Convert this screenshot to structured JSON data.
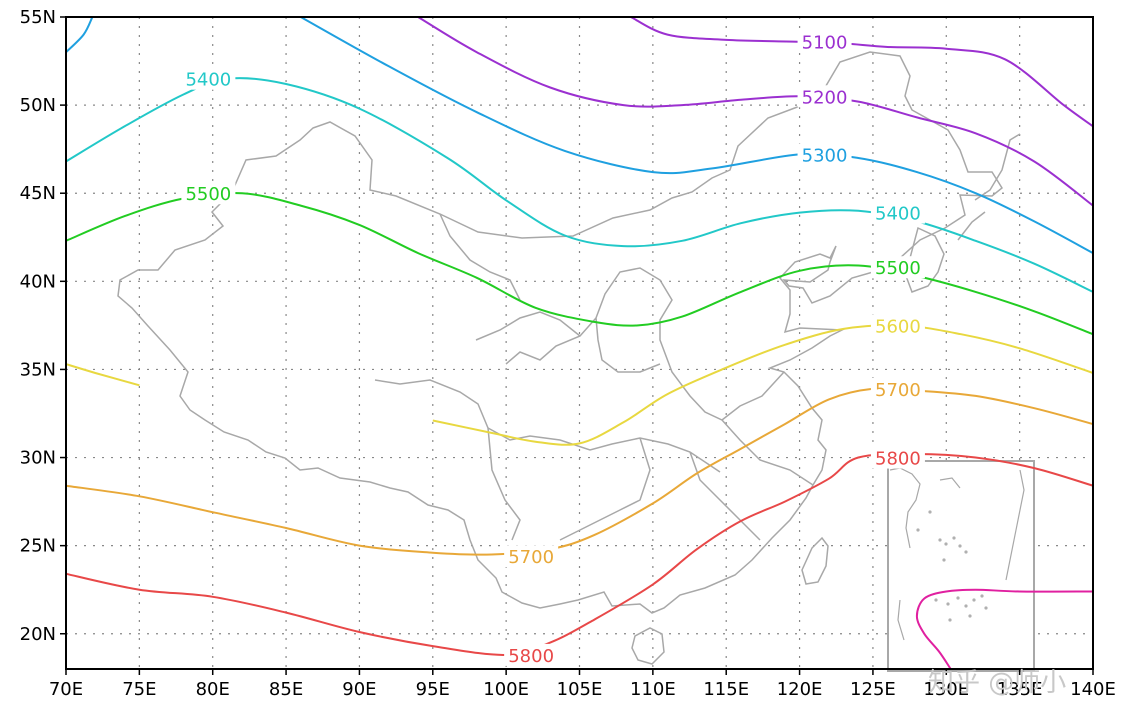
{
  "map": {
    "lon_range": [
      70,
      140
    ],
    "lat_range": [
      18,
      55
    ],
    "grid": true,
    "lon_ticks": [
      "70E",
      "75E",
      "80E",
      "85E",
      "90E",
      "95E",
      "100E",
      "105E",
      "110E",
      "115E",
      "120E",
      "125E",
      "130E",
      "135E",
      "140E"
    ],
    "lat_ticks": [
      "20N",
      "25N",
      "30N",
      "35N",
      "40N",
      "45N",
      "50N",
      "55N"
    ],
    "watermark": "知乎 @师小"
  },
  "chart_data": {
    "type": "contour",
    "contours": [
      {
        "level": "5100",
        "color": "#9b30d0",
        "path": [
          [
            108.5,
            55
          ],
          [
            111,
            54
          ],
          [
            115,
            53.7
          ],
          [
            120,
            53.6
          ],
          [
            123,
            53.5
          ],
          [
            126,
            53.3
          ],
          [
            130,
            53.2
          ],
          [
            134,
            52.6
          ],
          [
            138,
            50
          ],
          [
            140,
            48.8
          ]
        ],
        "labels": [
          [
            120,
            53.6
          ]
        ]
      },
      {
        "level": "5200",
        "color": "#9b30d0",
        "path": [
          [
            94,
            55
          ],
          [
            98,
            53
          ],
          [
            103,
            51
          ],
          [
            108,
            50
          ],
          [
            112,
            50
          ],
          [
            116,
            50.3
          ],
          [
            120,
            50.5
          ],
          [
            124,
            50.2
          ],
          [
            128,
            49.3
          ],
          [
            132,
            48.4
          ],
          [
            136,
            46.8
          ],
          [
            140,
            44.3
          ]
        ],
        "labels": [
          [
            120,
            50.5
          ]
        ]
      },
      {
        "level": "5300",
        "color": "#1fa0e0",
        "path": [
          [
            86,
            55
          ],
          [
            92,
            52.2
          ],
          [
            98,
            49.6
          ],
          [
            104,
            47.4
          ],
          [
            110,
            46.2
          ],
          [
            114,
            46.4
          ],
          [
            120,
            47.2
          ],
          [
            124,
            47.0
          ],
          [
            128,
            46.2
          ],
          [
            132,
            45.0
          ],
          [
            136,
            43.4
          ],
          [
            140,
            41.6
          ]
        ],
        "labels": [
          [
            120,
            47.2
          ]
        ]
      },
      {
        "level": "5300",
        "color": "#1fa0e0",
        "path": [
          [
            70,
            53
          ],
          [
            71.2,
            54
          ],
          [
            71.8,
            55
          ]
        ],
        "labels": []
      },
      {
        "level": "5400",
        "color": "#22c8c8",
        "path": [
          [
            70,
            46.8
          ],
          [
            74,
            48.8
          ],
          [
            78,
            50.6
          ],
          [
            81,
            51.5
          ],
          [
            85,
            51.2
          ],
          [
            90,
            49.8
          ],
          [
            96,
            47.0
          ],
          [
            100,
            44.6
          ],
          [
            104,
            42.6
          ],
          [
            108,
            42.0
          ],
          [
            112,
            42.3
          ],
          [
            116,
            43.3
          ],
          [
            120,
            43.9
          ],
          [
            124,
            44.0
          ],
          [
            128,
            43.4
          ],
          [
            132,
            42.3
          ],
          [
            136,
            41.0
          ],
          [
            140,
            39.4
          ]
        ],
        "labels": [
          [
            78,
            51.5
          ],
          [
            125,
            43.9
          ]
        ]
      },
      {
        "level": "5500",
        "color": "#22cc22",
        "path": [
          [
            70,
            42.3
          ],
          [
            74,
            43.7
          ],
          [
            78,
            44.7
          ],
          [
            82,
            45.0
          ],
          [
            86,
            44.3
          ],
          [
            90,
            43.2
          ],
          [
            94,
            41.6
          ],
          [
            98,
            40.2
          ],
          [
            102,
            38.5
          ],
          [
            106,
            37.7
          ],
          [
            109,
            37.5
          ],
          [
            112,
            38.0
          ],
          [
            116,
            39.4
          ],
          [
            120,
            40.6
          ],
          [
            124,
            40.9
          ],
          [
            128,
            40.3
          ],
          [
            132,
            39.4
          ],
          [
            136,
            38.3
          ],
          [
            140,
            37.0
          ]
        ],
        "labels": [
          [
            78,
            45
          ],
          [
            125,
            40.8
          ]
        ]
      },
      {
        "level": "5600",
        "color": "#e8d840",
        "path": [
          [
            70,
            35.3
          ],
          [
            72,
            34.8
          ],
          [
            75,
            34.1
          ]
        ],
        "labels": []
      },
      {
        "level": "5600",
        "color": "#e8d840",
        "path": [
          [
            95,
            32.1
          ],
          [
            99,
            31.4
          ],
          [
            102,
            30.9
          ],
          [
            105,
            30.8
          ],
          [
            108,
            32.0
          ],
          [
            111,
            33.6
          ],
          [
            115,
            35.1
          ],
          [
            119,
            36.4
          ],
          [
            123,
            37.3
          ],
          [
            127,
            37.5
          ],
          [
            131,
            37.0
          ],
          [
            135,
            36.2
          ],
          [
            140,
            34.8
          ]
        ],
        "labels": [
          [
            125,
            37.5
          ]
        ]
      },
      {
        "level": "5700",
        "color": "#e8a838",
        "path": [
          [
            70,
            28.4
          ],
          [
            75,
            27.8
          ],
          [
            80,
            26.9
          ],
          [
            85,
            26.0
          ],
          [
            90,
            25.0
          ],
          [
            95,
            24.6
          ],
          [
            99,
            24.5
          ],
          [
            103,
            24.8
          ],
          [
            106,
            25.6
          ],
          [
            110,
            27.4
          ],
          [
            113,
            29.1
          ],
          [
            116,
            30.5
          ],
          [
            119,
            31.9
          ],
          [
            122,
            33.3
          ],
          [
            125,
            33.9
          ],
          [
            128,
            33.8
          ],
          [
            132,
            33.5
          ],
          [
            136,
            32.8
          ],
          [
            140,
            31.9
          ]
        ],
        "labels": [
          [
            100,
            24.4
          ],
          [
            125,
            33.9
          ]
        ]
      },
      {
        "level": "5800",
        "color": "#e84848",
        "path": [
          [
            70,
            23.4
          ],
          [
            75,
            22.5
          ],
          [
            80,
            22.1
          ],
          [
            85,
            21.2
          ],
          [
            90,
            20.1
          ],
          [
            95,
            19.3
          ],
          [
            100,
            18.8
          ],
          [
            103,
            19.5
          ],
          [
            106,
            20.8
          ],
          [
            110,
            22.8
          ],
          [
            113,
            24.8
          ],
          [
            116,
            26.4
          ],
          [
            119,
            27.5
          ],
          [
            122,
            28.8
          ],
          [
            124,
            30.0
          ],
          [
            128,
            30.2
          ],
          [
            132,
            30.0
          ],
          [
            136,
            29.4
          ],
          [
            140,
            28.4
          ]
        ],
        "labels": [
          [
            100,
            18.8
          ],
          [
            125,
            30.0
          ]
        ]
      },
      {
        "level": "",
        "color": "#e020a0",
        "path": [
          [
            140,
            22.4
          ],
          [
            135,
            22.4
          ],
          [
            132,
            22.5
          ],
          [
            130,
            22.4
          ],
          [
            128.5,
            22.0
          ],
          [
            128,
            21.0
          ],
          [
            128.5,
            20.0
          ],
          [
            129.5,
            19.0
          ],
          [
            130.3,
            18.0
          ]
        ],
        "labels": []
      }
    ]
  }
}
